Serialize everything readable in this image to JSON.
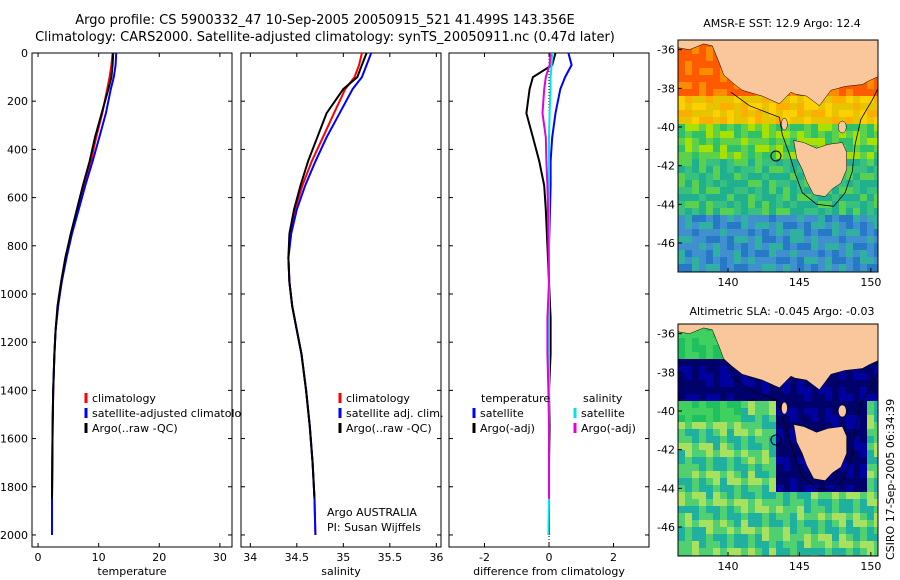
{
  "header": {
    "line1": "Argo profile: CS 5900332_47 10-Sep-2005 20050915_521 41.499S 143.356E",
    "line2": "Climatology: CARS2000. Satellite-adjusted climatology: synTS_20050911.nc (0.47d later)"
  },
  "credit": "CSIRO 17-Sep-2005 06:34:39",
  "colors": {
    "climatology": "#ff0000",
    "satellite": "#0000ff",
    "argo": "#000000",
    "sal_satellite": "#00e5e5",
    "sal_argo": "#e000e0",
    "land": "#f9c79b"
  },
  "chart_data": [
    {
      "type": "line",
      "xlabel": "temperature",
      "xlim": [
        -1,
        32
      ],
      "xticks": [
        0,
        10,
        20,
        30
      ],
      "ylim": [
        2050,
        0
      ],
      "yticks": [
        0,
        200,
        400,
        600,
        800,
        1000,
        1200,
        1400,
        1600,
        1800,
        2000
      ],
      "legend": [
        "climatology",
        "satellite-adjusted climatology",
        "Argo(..raw -QC)"
      ],
      "legend_placement": "middle-right",
      "series": [
        {
          "name": "climatology",
          "color": "#ff0000",
          "x": [
            12.3,
            12.1,
            11.8,
            11.4,
            10.6,
            9.6,
            8.7,
            7.6,
            6.5,
            5.4,
            4.6,
            3.9,
            3.3,
            2.9,
            2.7,
            2.5,
            2.4,
            2.35,
            2.3,
            2.3
          ],
          "y": [
            0,
            50,
            100,
            150,
            250,
            350,
            450,
            550,
            650,
            750,
            850,
            950,
            1050,
            1150,
            1250,
            1400,
            1550,
            1700,
            1850,
            2000
          ]
        },
        {
          "name": "satellite-adjusted climatology",
          "color": "#0000ff",
          "x": [
            12.9,
            12.8,
            12.5,
            12.0,
            11.2,
            10.1,
            9.0,
            7.8,
            6.7,
            5.6,
            4.7,
            3.9,
            3.3,
            2.9,
            2.7,
            2.5,
            2.4,
            2.35,
            2.3,
            2.3
          ],
          "y": [
            0,
            50,
            100,
            150,
            250,
            350,
            450,
            550,
            650,
            750,
            850,
            950,
            1050,
            1150,
            1250,
            1400,
            1550,
            1700,
            1850,
            2000
          ]
        },
        {
          "name": "Argo(..raw -QC)",
          "color": "#000000",
          "x": [
            12.4,
            12.3,
            12.1,
            11.6,
            10.5,
            9.4,
            8.5,
            7.4,
            6.4,
            5.4,
            4.5,
            3.8,
            3.2,
            2.9,
            2.7,
            2.5,
            2.4,
            2.35,
            2.3
          ],
          "y": [
            0,
            50,
            100,
            150,
            250,
            350,
            450,
            550,
            650,
            750,
            850,
            950,
            1050,
            1150,
            1250,
            1400,
            1550,
            1700,
            1850
          ]
        }
      ]
    },
    {
      "type": "line",
      "xlabel": "salinity",
      "xlim": [
        33.9,
        36.05
      ],
      "xticks": [
        34,
        34.5,
        35,
        35.5,
        36
      ],
      "xticklabels": [
        "34",
        "34.5",
        "35",
        "35.5",
        "36"
      ],
      "ylim": [
        2050,
        0
      ],
      "legend": [
        "climatology",
        "satellite adj. clim.",
        "Argo(..raw -QC)"
      ],
      "legend_placement": "middle-right",
      "annotations": [
        "Argo AUSTRALIA",
        "PI: Susan Wijffels"
      ],
      "series": [
        {
          "name": "climatology",
          "color": "#ff0000",
          "x": [
            35.2,
            35.17,
            35.12,
            35.02,
            34.9,
            34.78,
            34.66,
            34.56,
            34.48,
            34.43,
            34.41,
            34.42,
            34.45,
            34.5,
            34.55,
            34.6,
            34.64,
            34.67,
            34.69,
            34.7
          ],
          "y": [
            0,
            50,
            100,
            150,
            250,
            350,
            450,
            550,
            650,
            750,
            850,
            950,
            1050,
            1150,
            1250,
            1400,
            1550,
            1700,
            1850,
            2000
          ]
        },
        {
          "name": "satellite adj. clim.",
          "color": "#0000ff",
          "x": [
            35.3,
            35.25,
            35.2,
            35.1,
            34.96,
            34.82,
            34.7,
            34.59,
            34.5,
            34.44,
            34.41,
            34.42,
            34.45,
            34.5,
            34.55,
            34.6,
            34.64,
            34.67,
            34.69,
            34.7
          ],
          "y": [
            0,
            50,
            100,
            150,
            250,
            350,
            450,
            550,
            650,
            750,
            850,
            950,
            1050,
            1150,
            1250,
            1400,
            1550,
            1700,
            1850,
            2000
          ]
        },
        {
          "name": "Argo(..raw -QC)",
          "color": "#000000",
          "x": [
            35.25,
            35.2,
            35.15,
            35.0,
            34.82,
            34.72,
            34.62,
            34.54,
            34.47,
            34.42,
            34.41,
            34.42,
            34.45,
            34.5,
            34.55,
            34.6,
            34.64,
            34.67,
            34.69
          ],
          "y": [
            0,
            50,
            100,
            150,
            250,
            350,
            450,
            550,
            650,
            750,
            850,
            950,
            1050,
            1150,
            1250,
            1400,
            1550,
            1700,
            1850
          ]
        }
      ]
    },
    {
      "type": "line",
      "xlabel": "difference from climatology",
      "xlim": [
        -3.1,
        3.1
      ],
      "xticks": [
        -2,
        0,
        2
      ],
      "ylim": [
        2050,
        0
      ],
      "legend_groups": [
        {
          "title": "temperature",
          "items": [
            "satellite",
            "Argo(-adj)"
          ]
        },
        {
          "title": "salinity",
          "items": [
            "satellite",
            "Argo(-adj)"
          ]
        }
      ],
      "legend_placement": "middle-center",
      "series": [
        {
          "name": "temperature satellite",
          "color": "#0000ff",
          "x": [
            0.6,
            0.7,
            0.5,
            0.35,
            0.2,
            0.1,
            0.05,
            0.05,
            0.03,
            0.0,
            0.0,
            0.0,
            0.0,
            0.0,
            0.0,
            0.0,
            0.0,
            0.0
          ],
          "y": [
            0,
            50,
            100,
            150,
            250,
            350,
            450,
            550,
            650,
            800,
            950,
            1100,
            1250,
            1400,
            1550,
            1700,
            1850,
            2000
          ]
        },
        {
          "name": "temperature Argo(-adj)",
          "color": "#000000",
          "x": [
            0.2,
            0.1,
            -0.5,
            -0.6,
            -0.7,
            -0.5,
            -0.3,
            -0.15,
            -0.1,
            -0.05,
            0.0,
            0.05,
            0.05,
            0.0,
            0.02,
            0.0,
            0.0
          ],
          "y": [
            0,
            50,
            100,
            150,
            250,
            350,
            450,
            550,
            650,
            800,
            950,
            1100,
            1250,
            1400,
            1550,
            1700,
            1850
          ]
        },
        {
          "name": "salinity satellite",
          "color": "#00e5e5",
          "x": [
            0.1,
            0.08,
            0.05,
            0.05,
            0.02,
            0.0,
            0.0,
            0.0,
            0.0,
            0.0,
            0.0,
            0.0,
            0.0,
            0.0,
            0.0,
            0.0,
            0.0,
            -0.02
          ],
          "y": [
            0,
            50,
            100,
            150,
            250,
            350,
            450,
            550,
            650,
            800,
            950,
            1100,
            1250,
            1400,
            1550,
            1700,
            1850,
            2000
          ]
        },
        {
          "name": "salinity Argo(-adj)",
          "color": "#e000e0",
          "x": [
            0.05,
            0.02,
            -0.1,
            -0.15,
            -0.2,
            -0.1,
            -0.08,
            -0.05,
            -0.03,
            -0.02,
            0.0,
            -0.05,
            -0.05,
            -0.02,
            0.0,
            0.0,
            0.0
          ],
          "y": [
            0,
            50,
            100,
            150,
            250,
            350,
            450,
            550,
            650,
            800,
            950,
            1100,
            1250,
            1400,
            1550,
            1700,
            1850
          ]
        }
      ]
    },
    {
      "type": "heatmap",
      "title": "AMSR-E SST: 12.9 Argo: 12.4",
      "xlim": [
        136.5,
        150.5
      ],
      "xticks": [
        140,
        145,
        150
      ],
      "ylim": [
        -47.5,
        -35.5
      ],
      "yticks": [
        -36,
        -38,
        -40,
        -42,
        -44,
        -46
      ],
      "marker": {
        "lon": 143.356,
        "lat": -41.499
      }
    },
    {
      "type": "heatmap",
      "title": "Altimetric SLA: -0.045 Argo: -0.03",
      "xlim": [
        136.5,
        150.5
      ],
      "xticks": [
        140,
        145,
        150
      ],
      "ylim": [
        -47.5,
        -35.5
      ],
      "yticks": [
        -36,
        -38,
        -40,
        -42,
        -44,
        -46
      ],
      "marker": {
        "lon": 143.356,
        "lat": -41.499
      }
    }
  ]
}
